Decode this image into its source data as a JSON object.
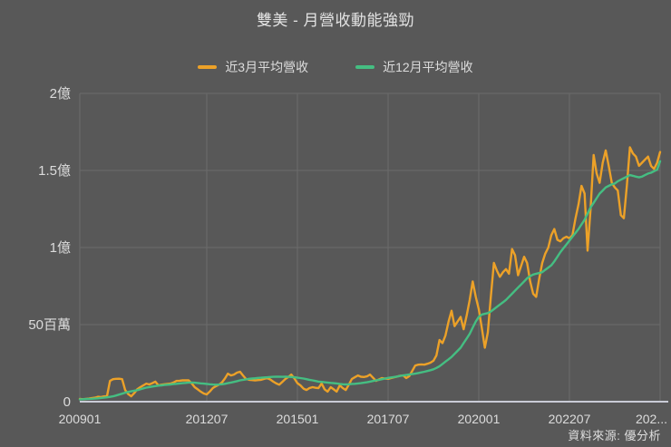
{
  "chart_data": {
    "type": "line",
    "title": "雙美 - 月營收動能強勁",
    "source": "資料來源: 優分析",
    "x_start": "2009-01",
    "x_end": "2025-01",
    "x_frequency": "monthly",
    "ylim": [
      0,
      200
    ],
    "y_unit_millions": true,
    "grid": true,
    "legend_position": "top-center",
    "colors": {
      "background": "#585858",
      "grid": "#6b6b6b",
      "axis_line": "#c9cbd6",
      "text": "#dcdcdc",
      "series_3m": "#ECA128",
      "series_12m": "#45BE82"
    },
    "y_ticks": [
      {
        "value": 0,
        "label": "0"
      },
      {
        "value": 50,
        "label": "50百萬"
      },
      {
        "value": 100,
        "label": "1億"
      },
      {
        "value": 150,
        "label": "1.5億"
      },
      {
        "value": 200,
        "label": "2億"
      }
    ],
    "x_ticks": [
      {
        "month_index": 0,
        "label": "200901"
      },
      {
        "month_index": 42,
        "label": "201207"
      },
      {
        "month_index": 72,
        "label": "201501"
      },
      {
        "month_index": 102,
        "label": "201707"
      },
      {
        "month_index": 132,
        "label": "202001"
      },
      {
        "month_index": 162,
        "label": "202207"
      },
      {
        "month_index": 192,
        "label": "202..."
      }
    ],
    "series": [
      {
        "name": "近3月平均營收",
        "color_key": "series_3m",
        "values": [
          1.8,
          1.6,
          1.8,
          2.0,
          2.3,
          2.6,
          3.2,
          3.0,
          3.4,
          3.6,
          13.5,
          14.6,
          14.8,
          14.9,
          14.6,
          7.6,
          5.0,
          3.5,
          5.5,
          8.0,
          9.4,
          10.5,
          11.7,
          11.2,
          12.0,
          13.0,
          10.6,
          11.0,
          11.3,
          11.5,
          11.7,
          12.4,
          13.5,
          13.6,
          13.8,
          13.9,
          13.8,
          12.0,
          9.4,
          8.0,
          6.5,
          5.3,
          4.7,
          6.5,
          8.8,
          10.0,
          11.0,
          12.4,
          15.0,
          18.2,
          17.0,
          17.6,
          18.8,
          19.4,
          17.0,
          14.7,
          14.2,
          14.0,
          13.8,
          14.0,
          14.2,
          14.8,
          15.3,
          14.4,
          13.0,
          11.8,
          11.0,
          12.8,
          14.7,
          16.0,
          17.6,
          15.0,
          12.0,
          10.6,
          8.5,
          7.6,
          8.8,
          9.4,
          9.0,
          8.8,
          11.8,
          8.0,
          6.5,
          9.4,
          8.0,
          6.5,
          10.6,
          8.8,
          7.6,
          11.0,
          14.7,
          15.8,
          17.0,
          16.2,
          16.0,
          16.4,
          17.6,
          15.5,
          13.5,
          14.4,
          15.3,
          15.0,
          14.8,
          15.3,
          15.8,
          16.3,
          16.8,
          17.0,
          15.3,
          16.5,
          20.0,
          23.5,
          24.0,
          24.2,
          24.0,
          24.6,
          25.3,
          26.5,
          30.0,
          40.0,
          38.0,
          43.0,
          52.0,
          59.0,
          49.0,
          52.0,
          55.0,
          47.0,
          56.0,
          66.0,
          78.0,
          68.0,
          60.0,
          48.0,
          35.0,
          45.0,
          68.0,
          90.0,
          85.0,
          81.0,
          84.0,
          86.0,
          83.0,
          99.0,
          95.0,
          82.0,
          88.0,
          94.0,
          90.0,
          78.0,
          70.0,
          68.0,
          80.0,
          90.0,
          96.0,
          100.0,
          108.0,
          112.0,
          105.0,
          104.0,
          106.0,
          107.0,
          106.0,
          108.0,
          119.0,
          128.0,
          140.0,
          135.0,
          98.0,
          125.0,
          160.0,
          148.0,
          142.0,
          155.0,
          163.0,
          153.0,
          142.0,
          139.0,
          137.0,
          121.0,
          119.0,
          140.0,
          165.0,
          161.0,
          159.0,
          153.0,
          155.0,
          157.0,
          159.0,
          153.0,
          151.0,
          155.0,
          162.0
        ]
      },
      {
        "name": "近12月平均營收",
        "color_key": "series_12m",
        "values": [
          1.5,
          1.6,
          1.7,
          1.8,
          1.9,
          2.0,
          2.2,
          2.4,
          2.6,
          2.8,
          3.1,
          3.5,
          4.0,
          4.6,
          5.2,
          5.8,
          6.3,
          6.7,
          7.1,
          7.5,
          8.0,
          8.6,
          9.1,
          9.5,
          9.8,
          10.1,
          10.4,
          10.6,
          10.8,
          11.0,
          11.2,
          11.4,
          11.6,
          11.8,
          12.0,
          12.2,
          12.4,
          12.4,
          12.3,
          12.1,
          11.9,
          11.7,
          11.5,
          11.3,
          11.1,
          11.0,
          11.1,
          11.3,
          11.6,
          12.0,
          12.4,
          12.8,
          13.3,
          13.8,
          14.2,
          14.5,
          14.8,
          15.0,
          15.2,
          15.4,
          15.5,
          15.7,
          15.8,
          16.0,
          16.1,
          16.2,
          16.2,
          16.1,
          16.2,
          16.1,
          16.0,
          15.8,
          15.6,
          15.3,
          15.0,
          14.6,
          14.2,
          13.8,
          13.4,
          13.0,
          12.8,
          12.6,
          12.4,
          12.2,
          12.0,
          11.8,
          11.5,
          11.3,
          11.2,
          11.3,
          11.5,
          11.6,
          11.8,
          12.0,
          12.3,
          12.6,
          13.0,
          13.4,
          13.8,
          14.2,
          14.6,
          15.0,
          15.4,
          15.7,
          16.0,
          16.3,
          16.7,
          17.0,
          17.3,
          17.6,
          17.9,
          18.2,
          18.6,
          19.0,
          19.4,
          19.9,
          20.4,
          21.0,
          21.9,
          23.0,
          24.5,
          26.0,
          27.5,
          29.0,
          31.0,
          33.0,
          35.0,
          38.0,
          41.0,
          44.0,
          48.0,
          52.0,
          55.0,
          56.5,
          57.0,
          57.5,
          58.5,
          60.0,
          61.5,
          63.0,
          64.5,
          66.0,
          68.0,
          70.0,
          72.0,
          74.0,
          76.0,
          78.0,
          80.0,
          81.5,
          82.5,
          83.0,
          83.5,
          84.0,
          85.5,
          87.0,
          88.5,
          91.0,
          94.0,
          97.0,
          99.5,
          102.0,
          104.5,
          107.0,
          109.5,
          112.0,
          115.0,
          118.0,
          122.0,
          126.0,
          129.0,
          132.0,
          135.0,
          137.0,
          139.0,
          140.0,
          141.0,
          141.5,
          143.0,
          144.0,
          145.0,
          146.0,
          147.0,
          146.5,
          146.0,
          145.5,
          146.0,
          147.0,
          148.0,
          148.5,
          149.5,
          150.5,
          156.0
        ]
      }
    ]
  }
}
